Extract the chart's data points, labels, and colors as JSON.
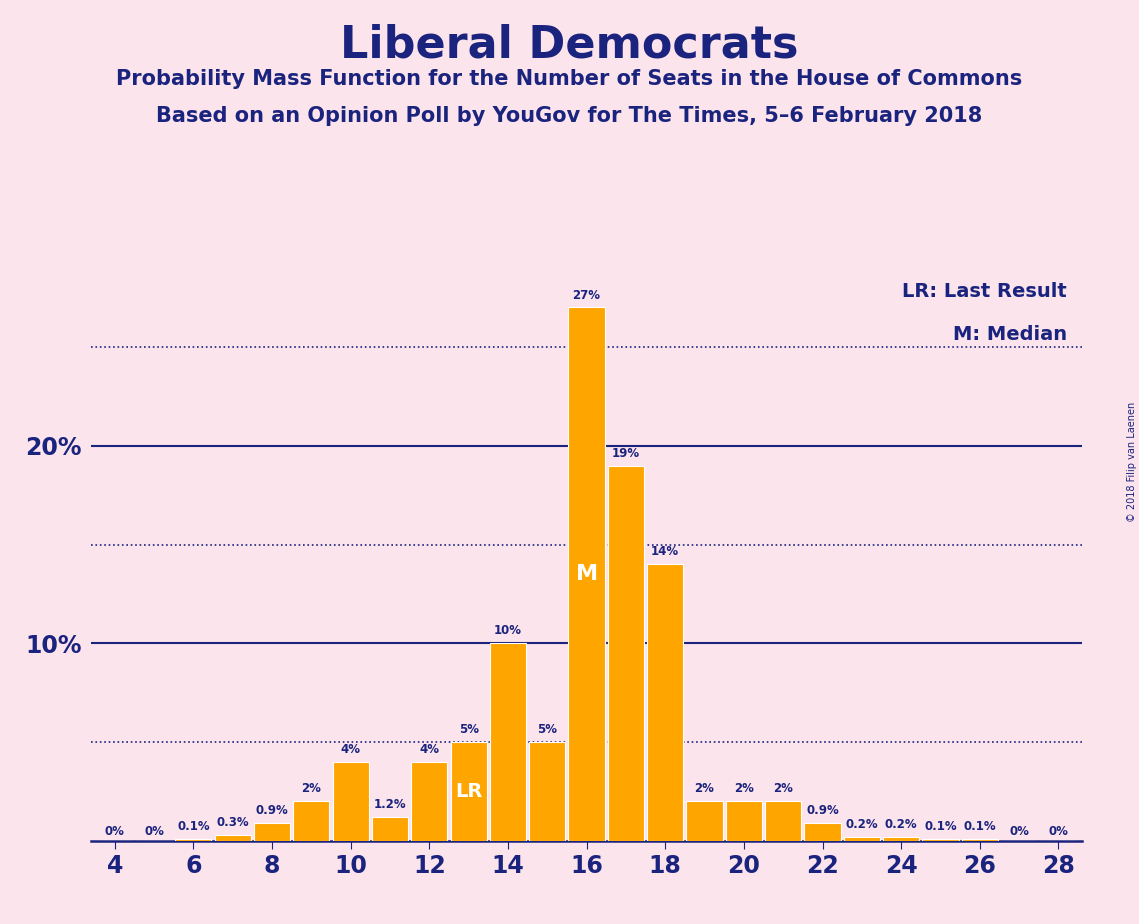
{
  "title": "Liberal Democrats",
  "subtitle1": "Probability Mass Function for the Number of Seats in the House of Commons",
  "subtitle2": "Based on an Opinion Poll by YouGov for The Times, 5–6 February 2018",
  "copyright": "© 2018 Filip van Laenen",
  "background_color": "#fce4ec",
  "bar_color": "#FFA500",
  "bar_edge_color": "#ffffff",
  "text_color": "#1a237e",
  "seats": [
    4,
    5,
    6,
    7,
    8,
    9,
    10,
    11,
    12,
    13,
    14,
    15,
    16,
    17,
    18,
    19,
    20,
    21,
    22,
    23,
    24,
    25,
    26,
    27,
    28
  ],
  "probabilities": [
    0.0,
    0.0,
    0.1,
    0.3,
    0.9,
    2.0,
    4.0,
    1.2,
    4.0,
    5.0,
    10.0,
    5.0,
    27.0,
    19.0,
    14.0,
    2.0,
    2.0,
    2.0,
    0.9,
    0.2,
    0.2,
    0.1,
    0.1,
    0.0,
    0.0
  ],
  "labels": [
    "0%",
    "0%",
    "0.1%",
    "0.3%",
    "0.9%",
    "2%",
    "4%",
    "1.2%",
    "4%",
    "5%",
    "10%",
    "5%",
    "27%",
    "19%",
    "14%",
    "2%",
    "2%",
    "2%",
    "0.9%",
    "0.2%",
    "0.2%",
    "0.1%",
    "0.1%",
    "0%",
    "0%"
  ],
  "lr_seat": 13,
  "median_seat": 16,
  "ylim_max": 29,
  "solid_yticks": [
    10,
    20
  ],
  "dotted_yticks": [
    5,
    15,
    25
  ],
  "xtick_labels": [
    4,
    6,
    8,
    10,
    12,
    14,
    16,
    18,
    20,
    22,
    24,
    26,
    28
  ],
  "legend_lr": "LR: Last Result",
  "legend_m": "M: Median"
}
